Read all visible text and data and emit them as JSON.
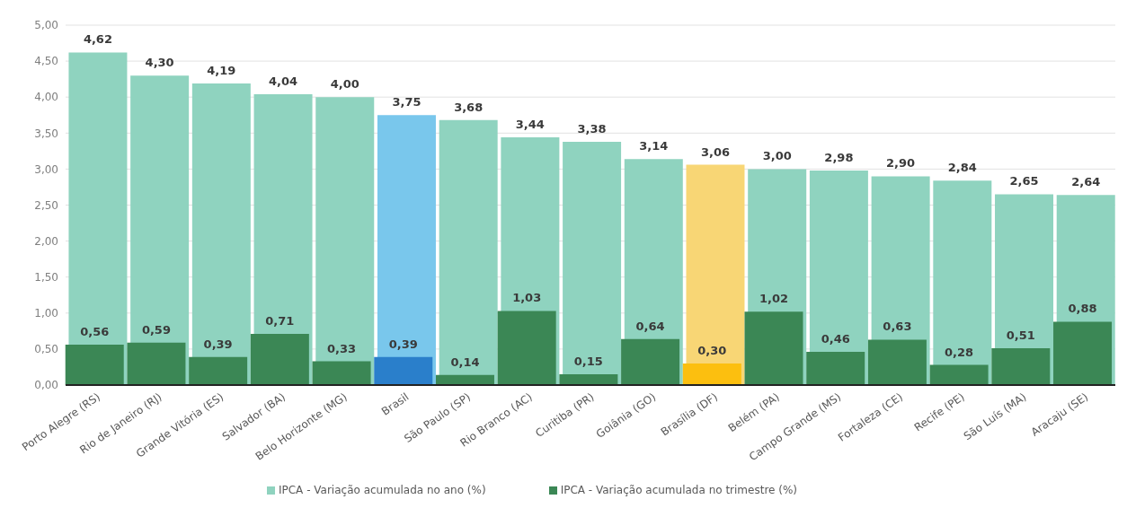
{
  "chart_data": {
    "type": "bar",
    "categories": [
      "Porto Alegre (RS)",
      "Rio de Janeiro (RJ)",
      "Grande Vitória (ES)",
      "Salvador (BA)",
      "Belo Horizonte (MG)",
      "Brasil",
      "São Paulo (SP)",
      "Rio Branco (AC)",
      "Curitiba (PR)",
      "Goiânia (GO)",
      "Brasília (DF)",
      "Belém (PA)",
      "Campo Grande (MS)",
      "Fortaleza (CE)",
      "Recife (PE)",
      "São Luís (MA)",
      "Aracaju (SE)"
    ],
    "series": [
      {
        "name": "IPCA - Variação acumulada no ano (%)",
        "color": "#8fd3bf",
        "colors": [
          "#8fd3bf",
          "#8fd3bf",
          "#8fd3bf",
          "#8fd3bf",
          "#8fd3bf",
          "#79c7ec",
          "#8fd3bf",
          "#8fd3bf",
          "#8fd3bf",
          "#8fd3bf",
          "#f8d675",
          "#8fd3bf",
          "#8fd3bf",
          "#8fd3bf",
          "#8fd3bf",
          "#8fd3bf",
          "#8fd3bf"
        ],
        "values": [
          4.62,
          4.3,
          4.19,
          4.04,
          4.0,
          3.75,
          3.68,
          3.44,
          3.38,
          3.14,
          3.06,
          3.0,
          2.98,
          2.9,
          2.84,
          2.65,
          2.64
        ],
        "value_labels": [
          "4,62",
          "4,30",
          "4,19",
          "4,04",
          "4,00",
          "3,75",
          "3,68",
          "3,44",
          "3,38",
          "3,14",
          "3,06",
          "3,00",
          "2,98",
          "2,90",
          "2,84",
          "2,65",
          "2,64"
        ]
      },
      {
        "name": "IPCA - Variação acumulada no trimestre (%)",
        "color": "#3b8755",
        "colors": [
          "#3b8755",
          "#3b8755",
          "#3b8755",
          "#3b8755",
          "#3b8755",
          "#2a7fcb",
          "#3b8755",
          "#3b8755",
          "#3b8755",
          "#3b8755",
          "#fcbf0f",
          "#3b8755",
          "#3b8755",
          "#3b8755",
          "#3b8755",
          "#3b8755",
          "#3b8755"
        ],
        "values": [
          0.56,
          0.59,
          0.39,
          0.71,
          0.33,
          0.39,
          0.14,
          1.03,
          0.15,
          0.64,
          0.3,
          1.02,
          0.46,
          0.63,
          0.28,
          0.51,
          0.88
        ],
        "value_labels": [
          "0,56",
          "0,59",
          "0,39",
          "0,71",
          "0,33",
          "0,39",
          "0,14",
          "1,03",
          "0,15",
          "0,64",
          "0,30",
          "1,02",
          "0,46",
          "0,63",
          "0,28",
          "0,51",
          "0,88"
        ]
      }
    ],
    "ylim": [
      0,
      5
    ],
    "yticks": [
      {
        "value": 0,
        "label": "0,00"
      },
      {
        "value": 0.5,
        "label": "0,50"
      },
      {
        "value": 1,
        "label": "1,00"
      },
      {
        "value": 1.5,
        "label": "1,50"
      },
      {
        "value": 2,
        "label": "2,00"
      },
      {
        "value": 2.5,
        "label": "2,50"
      },
      {
        "value": 3,
        "label": "3,00"
      },
      {
        "value": 3.5,
        "label": "3,50"
      },
      {
        "value": 4,
        "label": "4,00"
      },
      {
        "value": 4.5,
        "label": "4,50"
      },
      {
        "value": 5,
        "label": "5,00"
      }
    ],
    "grid": "y",
    "legend": "bottom"
  }
}
